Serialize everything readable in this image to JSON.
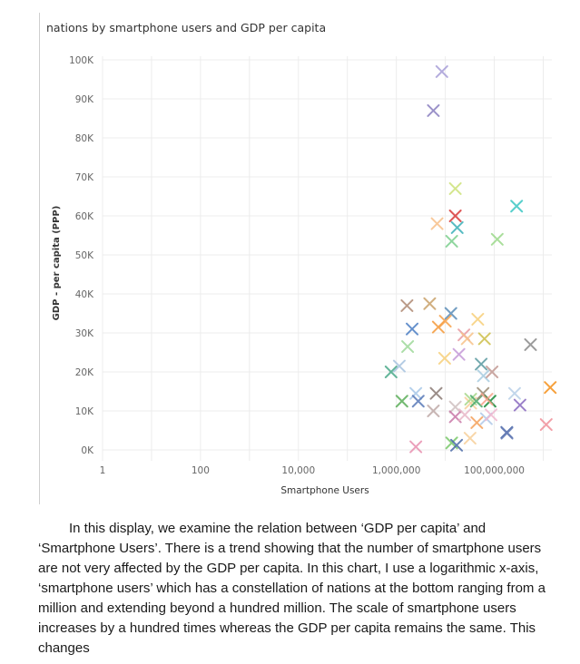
{
  "chart_data": {
    "type": "scatter",
    "title": "nations by smartphone users and GDP per capita",
    "xlabel": "Smartphone Users",
    "ylabel": "GDP - per capita (PPP)",
    "x_scale": "log",
    "xlim": [
      1,
      1500000000
    ],
    "ylim": [
      0,
      100000
    ],
    "x_ticks": [
      1,
      100,
      10000,
      1000000,
      100000000
    ],
    "x_tick_labels": [
      "1",
      "100",
      "10,000",
      "1,000,000",
      "100,000,000"
    ],
    "y_ticks": [
      0,
      10000,
      20000,
      30000,
      40000,
      50000,
      60000,
      70000,
      80000,
      90000,
      100000
    ],
    "y_tick_labels": [
      "0K",
      "10K",
      "20K",
      "30K",
      "40K",
      "50K",
      "60K",
      "70K",
      "80K",
      "90K",
      "100K"
    ],
    "grid": true,
    "marker": "x",
    "points": [
      {
        "x": 8500000,
        "y": 97000,
        "color": "#a89ed8"
      },
      {
        "x": 5700000,
        "y": 87000,
        "color": "#8a7fc0"
      },
      {
        "x": 16000000,
        "y": 67000,
        "color": "#cde27a"
      },
      {
        "x": 286000000,
        "y": 62500,
        "color": "#3cc7c4"
      },
      {
        "x": 16000000,
        "y": 60000,
        "color": "#d93a3a"
      },
      {
        "x": 6800000,
        "y": 58000,
        "color": "#f7c08a"
      },
      {
        "x": 17500000,
        "y": 57000,
        "color": "#3ab0b8"
      },
      {
        "x": 13500000,
        "y": 53500,
        "color": "#7ccf8e"
      },
      {
        "x": 115000000,
        "y": 54000,
        "color": "#9bd98a"
      },
      {
        "x": 1650000,
        "y": 37000,
        "color": "#b08a74"
      },
      {
        "x": 4800000,
        "y": 37500,
        "color": "#c9a26a"
      },
      {
        "x": 13000000,
        "y": 35000,
        "color": "#5b8db8"
      },
      {
        "x": 2100000,
        "y": 31000,
        "color": "#4c7ec4"
      },
      {
        "x": 7200000,
        "y": 31500,
        "color": "#f59a3a"
      },
      {
        "x": 10000000,
        "y": 33000,
        "color": "#f7a24a"
      },
      {
        "x": 46000000,
        "y": 33500,
        "color": "#f7cf7a"
      },
      {
        "x": 24000000,
        "y": 29500,
        "color": "#e89aa0"
      },
      {
        "x": 28000000,
        "y": 28500,
        "color": "#f7c38a"
      },
      {
        "x": 63000000,
        "y": 28500,
        "color": "#cdbf4a"
      },
      {
        "x": 1700000,
        "y": 26500,
        "color": "#9ed99a"
      },
      {
        "x": 9700000,
        "y": 23500,
        "color": "#f7d07a"
      },
      {
        "x": 19000000,
        "y": 24500,
        "color": "#c59ad8"
      },
      {
        "x": 550000000,
        "y": 27000,
        "color": "#8a8a8a"
      },
      {
        "x": 780000,
        "y": 20000,
        "color": "#4caa8a"
      },
      {
        "x": 1150000,
        "y": 21500,
        "color": "#a8c4e0"
      },
      {
        "x": 54000000,
        "y": 22000,
        "color": "#5a9aa0"
      },
      {
        "x": 60000000,
        "y": 19000,
        "color": "#a8cce0"
      },
      {
        "x": 90000000,
        "y": 20000,
        "color": "#c29a94"
      },
      {
        "x": 2500000,
        "y": 14500,
        "color": "#a8c8e8"
      },
      {
        "x": 6500000,
        "y": 14500,
        "color": "#8a7a74"
      },
      {
        "x": 2800000,
        "y": 12500,
        "color": "#5a7ab8"
      },
      {
        "x": 1300000,
        "y": 12500,
        "color": "#5cae5a"
      },
      {
        "x": 5700000,
        "y": 10000,
        "color": "#bfaaa8"
      },
      {
        "x": 16000000,
        "y": 11000,
        "color": "#d0c0c0"
      },
      {
        "x": 33000000,
        "y": 12000,
        "color": "#f7d09a"
      },
      {
        "x": 33000000,
        "y": 13000,
        "color": "#a8d88a"
      },
      {
        "x": 43000000,
        "y": 12500,
        "color": "#4caa6a"
      },
      {
        "x": 59000000,
        "y": 14500,
        "color": "#9a8a74"
      },
      {
        "x": 82000000,
        "y": 12500,
        "color": "#1a8a3a"
      },
      {
        "x": 71000000,
        "y": 13000,
        "color": "#f7a28a"
      },
      {
        "x": 16000000,
        "y": 8500,
        "color": "#c878a8"
      },
      {
        "x": 25000000,
        "y": 9000,
        "color": "#e8b8c8"
      },
      {
        "x": 44000000,
        "y": 7000,
        "color": "#f5a05a"
      },
      {
        "x": 69000000,
        "y": 8000,
        "color": "#b0c8e8"
      },
      {
        "x": 86000000,
        "y": 9000,
        "color": "#f0b8d0"
      },
      {
        "x": 180000000,
        "y": 4500,
        "color": "#3a5aa0"
      },
      {
        "x": 260000000,
        "y": 14500,
        "color": "#b8d0e8"
      },
      {
        "x": 335000000,
        "y": 11500,
        "color": "#8a6ac0"
      },
      {
        "x": 1390000000,
        "y": 16000,
        "color": "#f5901a"
      },
      {
        "x": 1150000000,
        "y": 6500,
        "color": "#f0909a"
      },
      {
        "x": 2500000,
        "y": 800,
        "color": "#e890b0"
      },
      {
        "x": 13500000,
        "y": 1800,
        "color": "#7ac86a"
      },
      {
        "x": 17000000,
        "y": 1200,
        "color": "#4a6aa8"
      },
      {
        "x": 32000000,
        "y": 3000,
        "color": "#f7d09a"
      },
      {
        "x": 182000000,
        "y": 4300,
        "color": "#6a80b8"
      }
    ]
  },
  "paragraph": "In this display, we examine the relation between ‘GDP per capita’ and ‘Smartphone Users’. There is a trend showing that the number of smartphone users are not very affected by the GDP per capita. In this chart, I use a logarithmic x-axis, ‘smartphone users’ which has a constellation of nations at the bottom ranging from a million and extending beyond a hundred million. The scale of smartphone users increases by a hundred times whereas the GDP per capita remains the same. This changes"
}
